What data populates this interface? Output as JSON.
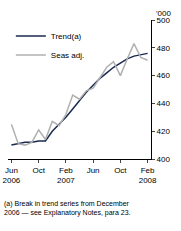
{
  "chart_data": {
    "type": "line",
    "y_label": "'000",
    "categories": [
      "Jun 2006",
      null,
      null,
      null,
      "Oct",
      null,
      null,
      null,
      "Feb 2007",
      null,
      null,
      null,
      "Jun",
      null,
      null,
      null,
      "Oct",
      null,
      null,
      null,
      "Feb 2008"
    ],
    "series": [
      {
        "name": "Trend(a)",
        "color": "#1a2a4f",
        "values": [
          410,
          411,
          412,
          412,
          413,
          413,
          420,
          425,
          430,
          436,
          442,
          448,
          453,
          458,
          462,
          466,
          469,
          472,
          474,
          475,
          476
        ]
      },
      {
        "name": "Seas adj.",
        "color": "#b0b0b0",
        "values": [
          425,
          411,
          410,
          412,
          421,
          414,
          427,
          424,
          432,
          446,
          443,
          449,
          451,
          459,
          466,
          470,
          460,
          472,
          483,
          473,
          471
        ]
      }
    ],
    "ylim": [
      400,
      500
    ],
    "yticks": [
      400,
      420,
      440,
      460,
      480,
      500
    ],
    "grid": false,
    "legend": "top-left",
    "annotations": [
      "(a) Break in trend series from December",
      "2006 — see Explanatory Notes, para 23."
    ]
  }
}
